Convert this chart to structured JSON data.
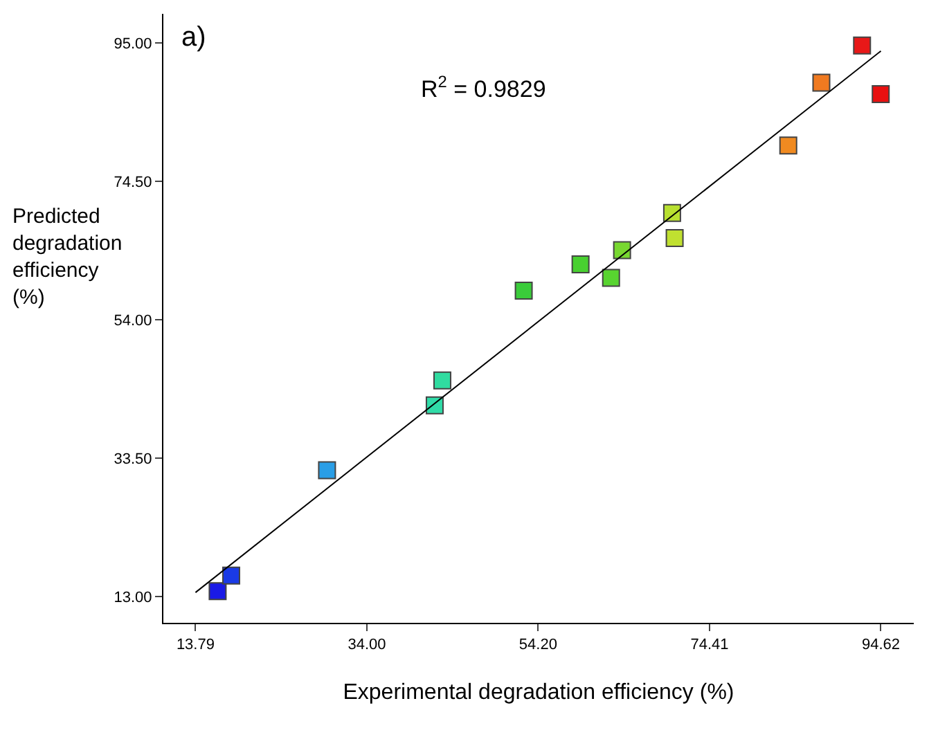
{
  "chart_data": {
    "type": "scatter",
    "xlabel": "Experimental degradation efficiency (%)",
    "ylabel": "Predicted\ndegradation\nefficiency\n(%)",
    "annotations": [
      "a)",
      "R$^{2}$ = 0.9829"
    ],
    "xlim": [
      10.0,
      98.5
    ],
    "ylim": [
      9.1,
      99.3
    ],
    "xticks": [
      13.79,
      {
        "value": 34,
        "label": "34.00"
      },
      {
        "value": 54.2,
        "label": "54.20"
      },
      74.41,
      94.62
    ],
    "yticks": [
      {
        "value": 13,
        "label": "13.00"
      },
      {
        "value": 33.5,
        "label": "33.50"
      },
      {
        "value": 54,
        "label": "54.00"
      },
      {
        "value": 74.5,
        "label": "74.50"
      },
      {
        "value": 95,
        "label": "95.00"
      }
    ],
    "series": [
      {
        "marker": "square",
        "x": [
          16.4,
          18.0,
          29.3,
          42.0,
          42.9,
          52.5,
          59.2,
          62.8,
          64.1,
          70.0,
          70.3,
          83.7,
          87.6,
          92.4,
          94.6
        ],
        "values": [
          13.8,
          16.1,
          31.7,
          41.3,
          45.0,
          58.3,
          62.2,
          60.2,
          64.3,
          69.8,
          66.1,
          79.8,
          89.1,
          94.6,
          87.4
        ],
        "colors": [
          "#1a1ae6",
          "#1a3ae6",
          "#2a9ee6",
          "#30dca8",
          "#30dca0",
          "#3acc3a",
          "#48d030",
          "#58d430",
          "#78d830",
          "#b8e030",
          "#c0e030",
          "#f08a20",
          "#f07a20",
          "#e81818",
          "#e81010"
        ]
      },
      {
        "type": "line",
        "x": [
          13.79,
          94.62
        ],
        "values": [
          13.6,
          93.8
        ],
        "color": "#000000"
      }
    ]
  }
}
